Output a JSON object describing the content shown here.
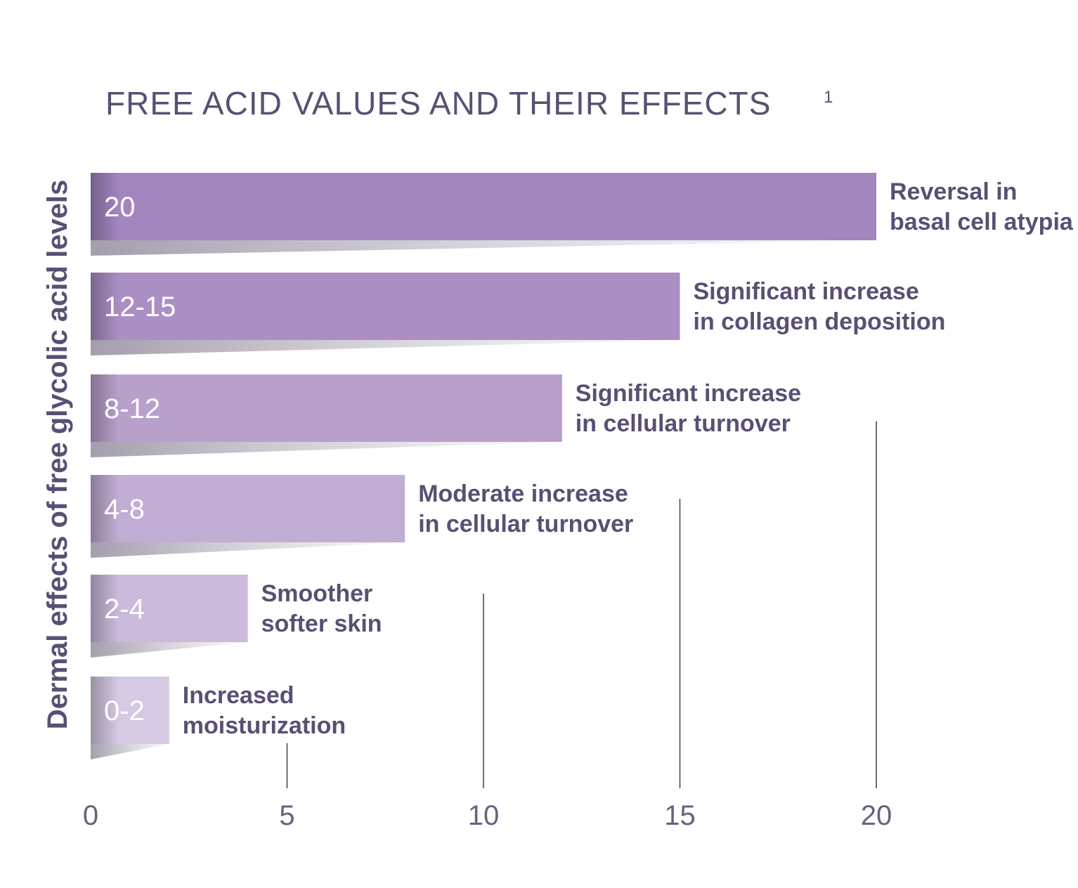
{
  "chart_data": {
    "type": "bar",
    "orientation": "horizontal",
    "title": "FREE ACID VALUES AND THEIR EFFECTS",
    "title_superscript": "1",
    "ylabel": "Dermal effects of free glycolic acid levels",
    "xlabel": "",
    "xlim": [
      0,
      20
    ],
    "xticks": [
      "0",
      "5",
      "10",
      "15",
      "20"
    ],
    "grid": true,
    "bars": [
      {
        "label": "20",
        "value": 20,
        "effect": [
          "Reversal in",
          "basal cell atypia"
        ],
        "color": "#a385bf"
      },
      {
        "label": "12-15",
        "value": 15,
        "effect": [
          "Significant increase",
          "in collagen deposition"
        ],
        "color": "#ab8fc4"
      },
      {
        "label": "8-12",
        "value": 12,
        "effect": [
          "Significant increase",
          "in cellular turnover"
        ],
        "color": "#b8a0cb"
      },
      {
        "label": "4-8",
        "value": 8,
        "effect": [
          "Moderate increase",
          "in cellular turnover"
        ],
        "color": "#c2add4"
      },
      {
        "label": "2-4",
        "value": 4,
        "effect": [
          "Smoother",
          "softer skin"
        ],
        "color": "#cbbadc"
      },
      {
        "label": "0-2",
        "value": 2,
        "effect": [
          "Increased",
          "moisturization"
        ],
        "color": "#d6c9e4"
      }
    ]
  }
}
